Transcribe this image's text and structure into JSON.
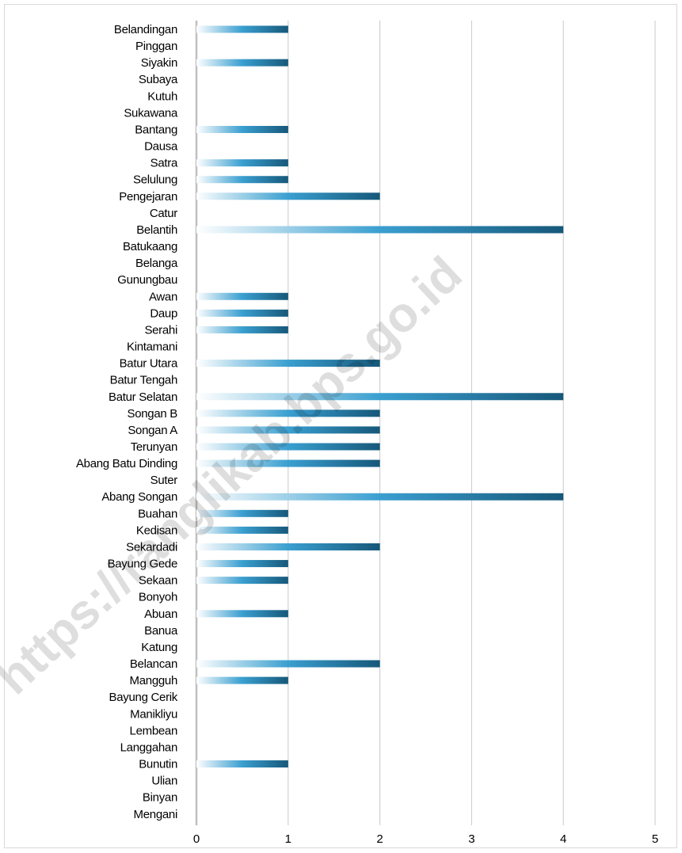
{
  "chart_data": {
    "type": "bar",
    "orientation": "horizontal",
    "categories": [
      "Belandingan",
      "Pinggan",
      "Siyakin",
      "Subaya",
      "Kutuh",
      "Sukawana",
      "Bantang",
      "Dausa",
      "Satra",
      "Selulung",
      "Pengejaran",
      "Catur",
      "Belantih",
      "Batukaang",
      "Belanga",
      "Gunungbau",
      "Awan",
      "Daup",
      "Serahi",
      "Kintamani",
      "Batur Utara",
      "Batur Tengah",
      "Batur Selatan",
      "Songan B",
      "Songan A",
      "Terunyan",
      "Abang Batu Dinding",
      "Suter",
      "Abang Songan",
      "Buahan",
      "Kedisan",
      "Sekardadi",
      "Bayung Gede",
      "Sekaan",
      "Bonyoh",
      "Abuan",
      "Banua",
      "Katung",
      "Belancan",
      "Mangguh",
      "Bayung Cerik",
      "Manikliyu",
      "Lembean",
      "Langgahan",
      "Bunutin",
      "Ulian",
      "Binyan",
      "Mengani"
    ],
    "values": [
      1,
      0,
      1,
      0,
      0,
      0,
      1,
      0,
      1,
      1,
      2,
      0,
      4,
      0,
      0,
      0,
      1,
      1,
      1,
      0,
      2,
      0,
      4,
      2,
      2,
      2,
      2,
      0,
      4,
      1,
      1,
      2,
      1,
      1,
      0,
      1,
      0,
      0,
      2,
      1,
      0,
      0,
      0,
      0,
      1,
      0,
      0,
      0
    ],
    "xlim": [
      0,
      5
    ],
    "xticks": [
      "0",
      "1",
      "2",
      "3",
      "4",
      "5"
    ],
    "grid": "vertical",
    "legend": "none",
    "title": "",
    "xlabel": "",
    "ylabel": "",
    "colors": {
      "bar_start": "#ffffff",
      "bar_mid": "#3a9fd0",
      "bar_end": "#16587a",
      "gridline": "#c8c8c8",
      "axis": "#bfbfbf"
    }
  },
  "watermark": "https://ranglikab.bps.go.id"
}
